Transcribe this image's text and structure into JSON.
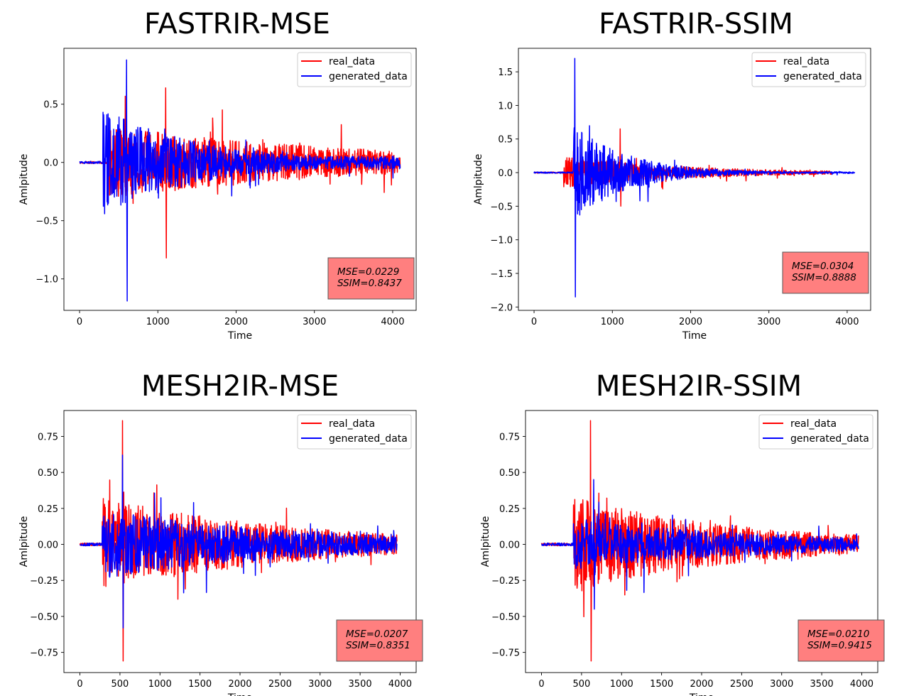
{
  "chart_data": [
    {
      "type": "line",
      "title": "FASTRIR-MSE",
      "xlabel": "Time",
      "ylabel": "Amlpitude",
      "xlim": [
        -200,
        4300
      ],
      "ylim": [
        -1.27,
        0.98
      ],
      "xticks": [
        0,
        1000,
        2000,
        3000,
        4000
      ],
      "yticks": [
        -1.0,
        -0.5,
        0.0,
        0.5
      ],
      "ytick_labels": [
        "−1.0",
        "−0.5",
        "0.0",
        "0.5"
      ],
      "legend": {
        "position": "upper right"
      },
      "annotation": {
        "position": "lower right",
        "lines": [
          "MSE=0.0229",
          "SSIM=0.8437"
        ],
        "color": "#ff7f7f"
      },
      "series": [
        {
          "name": "real_data",
          "color": "#ff0000",
          "n": 4096,
          "onset": 380,
          "peak_time": 1100,
          "peak_amp": 0.64,
          "min_amp": -0.82,
          "decay": 3200,
          "floor": 0.11
        },
        {
          "name": "generated_data",
          "color": "#0000ff",
          "n": 4096,
          "onset": 300,
          "peak_time": 600,
          "peak_amp": 0.88,
          "min_amp": -1.19,
          "decay": 1300,
          "floor": 0.12
        }
      ]
    },
    {
      "type": "line",
      "title": "FASTRIR-SSIM",
      "xlabel": "Time",
      "ylabel": "Amlpitude",
      "xlim": [
        -200,
        4300
      ],
      "ylim": [
        -2.05,
        1.85
      ],
      "xticks": [
        0,
        1000,
        2000,
        3000,
        4000
      ],
      "yticks": [
        -2.0,
        -1.5,
        -1.0,
        -0.5,
        0.0,
        0.5,
        1.0,
        1.5
      ],
      "ytick_labels": [
        "−2.0",
        "−1.5",
        "−1.0",
        "−0.5",
        "0.0",
        "0.5",
        "1.0",
        "1.5"
      ],
      "legend": {
        "position": "upper right"
      },
      "annotation": {
        "position": "lower right",
        "lines": [
          "MSE=0.0304",
          "SSIM=0.8888"
        ],
        "color": "#ff7f7f"
      },
      "series": [
        {
          "name": "real_data",
          "color": "#ff0000",
          "n": 3800,
          "onset": 380,
          "peak_time": 1100,
          "peak_amp": 0.65,
          "min_amp": -0.5,
          "decay": 1500,
          "floor": 0.03
        },
        {
          "name": "generated_data",
          "color": "#0000ff",
          "n": 4096,
          "onset": 500,
          "peak_time": 520,
          "peak_amp": 1.7,
          "min_amp": -1.85,
          "decay": 700,
          "floor": 0.02
        }
      ]
    },
    {
      "type": "line",
      "title": "MESH2IR-MSE",
      "xlabel": "Time",
      "ylabel": "Amlpitude",
      "xlim": [
        -200,
        4200
      ],
      "ylim": [
        -0.89,
        0.93
      ],
      "xticks": [
        0,
        500,
        1000,
        1500,
        2000,
        2500,
        3000,
        3500,
        4000
      ],
      "yticks": [
        -0.75,
        -0.5,
        -0.25,
        0.0,
        0.25,
        0.5,
        0.75
      ],
      "ytick_labels": [
        "−0.75",
        "−0.50",
        "−0.25",
        "0.00",
        "0.25",
        "0.50",
        "0.75"
      ],
      "legend": {
        "position": "upper right"
      },
      "annotation": {
        "position": "lower right",
        "lines": [
          "MSE=0.0207",
          "SSIM=0.8351"
        ],
        "color": "#ff7f7f"
      },
      "series": [
        {
          "name": "real_data",
          "color": "#ff0000",
          "n": 3960,
          "onset": 280,
          "peak_time": 530,
          "peak_amp": 0.86,
          "min_amp": -0.81,
          "decay": 2400,
          "floor": 0.05
        },
        {
          "name": "generated_data",
          "color": "#0000ff",
          "n": 3960,
          "onset": 280,
          "peak_time": 530,
          "peak_amp": 0.62,
          "min_amp": -0.58,
          "decay": 2600,
          "floor": 0.06
        }
      ]
    },
    {
      "type": "line",
      "title": "MESH2IR-SSIM",
      "xlabel": "Time",
      "ylabel": "Amlpitude",
      "xlim": [
        -200,
        4200
      ],
      "ylim": [
        -0.89,
        0.93
      ],
      "xticks": [
        0,
        500,
        1000,
        1500,
        2000,
        2500,
        3000,
        3500,
        4000
      ],
      "yticks": [
        -0.75,
        -0.5,
        -0.25,
        0.0,
        0.25,
        0.5,
        0.75
      ],
      "ytick_labels": [
        "−0.75",
        "−0.50",
        "−0.25",
        "0.00",
        "0.25",
        "0.50",
        "0.75"
      ],
      "legend": {
        "position": "upper right"
      },
      "annotation": {
        "position": "lower right",
        "lines": [
          "MSE=0.0210",
          "SSIM=0.9415"
        ],
        "color": "#ff7f7f"
      },
      "series": [
        {
          "name": "real_data",
          "color": "#ff0000",
          "n": 3960,
          "onset": 400,
          "peak_time": 610,
          "peak_amp": 0.86,
          "min_amp": -0.81,
          "decay": 2200,
          "floor": 0.05
        },
        {
          "name": "generated_data",
          "color": "#0000ff",
          "n": 3960,
          "onset": 400,
          "peak_time": 650,
          "peak_amp": 0.45,
          "min_amp": -0.45,
          "decay": 2700,
          "floor": 0.06
        }
      ]
    }
  ]
}
